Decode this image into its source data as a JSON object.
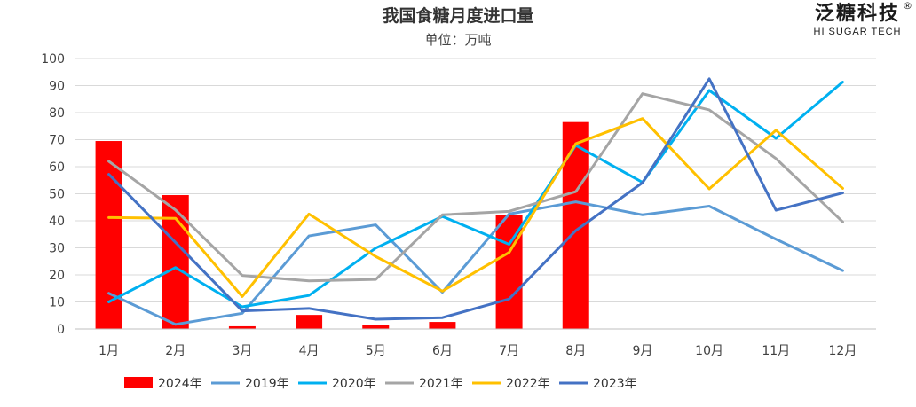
{
  "brand": {
    "name": "泛糖科技",
    "registered": "®",
    "tagline": "HI SUGAR TECH"
  },
  "chart_data": {
    "type": "bar+line",
    "title": "我国食糖月度进口量",
    "subtitle": "单位：万吨",
    "categories": [
      "1月",
      "2月",
      "3月",
      "4月",
      "5月",
      "6月",
      "7月",
      "8月",
      "9月",
      "10月",
      "11月",
      "12月"
    ],
    "ylim": [
      0,
      100
    ],
    "yticks": [
      0,
      10,
      20,
      30,
      40,
      50,
      60,
      70,
      80,
      90,
      100
    ],
    "grid": true,
    "legend_position": "bottom",
    "bars": {
      "name": "2024年",
      "color": "#ff0000",
      "values": [
        69.5,
        49.5,
        1.0,
        5.2,
        1.5,
        2.6,
        42.0,
        76.5,
        null,
        null,
        null,
        null
      ]
    },
    "series": [
      {
        "name": "2019年",
        "color": "#5b9bd5",
        "values": [
          13.2,
          1.7,
          5.8,
          34.4,
          38.5,
          13.6,
          42.5,
          47.0,
          42.2,
          45.4,
          33.2,
          21.6
        ]
      },
      {
        "name": "2020年",
        "color": "#00b0f0",
        "values": [
          10.0,
          22.7,
          8.2,
          12.4,
          29.9,
          41.6,
          31.3,
          67.9,
          54.2,
          88.2,
          70.5,
          91.3
        ]
      },
      {
        "name": "2021年",
        "color": "#a5a5a5",
        "values": [
          62.0,
          44.0,
          19.8,
          17.8,
          18.3,
          42.2,
          43.5,
          50.8,
          87.0,
          81.0,
          63.0,
          39.6
        ]
      },
      {
        "name": "2022年",
        "color": "#ffc000",
        "values": [
          41.2,
          40.9,
          12.0,
          42.5,
          26.8,
          14.0,
          28.3,
          68.5,
          77.8,
          51.8,
          73.5,
          52.0
        ]
      },
      {
        "name": "2023年",
        "color": "#4472c4",
        "values": [
          57.2,
          32.0,
          6.7,
          7.6,
          3.6,
          4.2,
          11.1,
          36.4,
          54.1,
          92.5,
          43.9,
          50.3
        ]
      }
    ]
  }
}
